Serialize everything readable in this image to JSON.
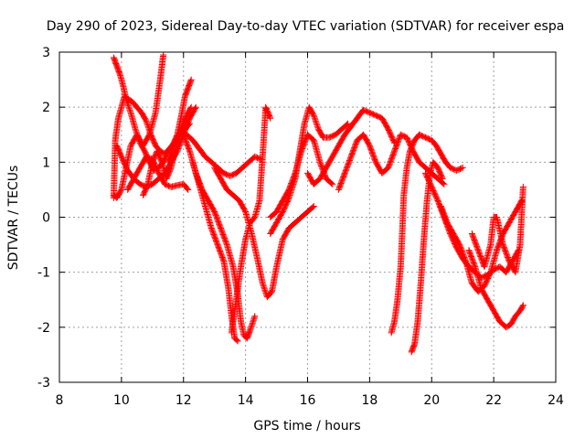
{
  "chart_data": {
    "type": "scatter",
    "title": "Day 290 of 2023, Sidereal Day-to-day VTEC variation (SDTVAR) for receiver espa",
    "xlabel": "GPS time / hours",
    "ylabel": "SDTVAR / TECUs",
    "xlim": [
      8,
      24
    ],
    "ylim": [
      -3,
      3
    ],
    "xticks": [
      8,
      10,
      12,
      14,
      16,
      18,
      20,
      22,
      24
    ],
    "yticks": [
      -3,
      -2,
      -1,
      0,
      1,
      2,
      3
    ],
    "grid": true,
    "marker": "+",
    "color": "#ff0000",
    "series": [
      {
        "name": "track-1",
        "x": [
          9.75,
          9.85,
          9.95,
          10.05,
          10.15,
          10.3,
          10.45,
          10.6,
          10.75,
          10.9,
          11.05,
          11.2,
          11.35,
          11.5,
          11.65,
          11.8,
          11.95,
          12.05,
          12.15,
          12.25
        ],
        "y": [
          2.9,
          2.75,
          2.6,
          2.4,
          2.15,
          1.9,
          1.6,
          1.35,
          1.2,
          1.0,
          0.85,
          0.9,
          1.0,
          1.2,
          1.3,
          1.5,
          1.9,
          2.2,
          2.35,
          2.5
        ]
      },
      {
        "name": "track-2",
        "x": [
          9.75,
          9.8,
          9.9,
          10.0,
          10.1,
          10.2,
          10.35,
          10.5,
          10.65,
          10.8,
          10.95,
          11.1,
          11.25,
          11.4,
          11.55,
          11.7,
          11.85,
          12.0,
          12.1,
          12.25
        ],
        "y": [
          0.35,
          1.4,
          1.8,
          2.0,
          2.2,
          2.15,
          2.1,
          2.0,
          1.9,
          1.75,
          1.5,
          1.3,
          1.2,
          1.15,
          1.25,
          1.35,
          1.5,
          1.7,
          1.85,
          2.0
        ]
      },
      {
        "name": "track-3",
        "x": [
          9.75,
          9.85,
          10.0,
          10.15,
          10.3,
          10.5,
          10.7,
          10.9,
          11.1,
          11.25,
          11.35
        ],
        "y": [
          0.4,
          0.35,
          0.5,
          0.9,
          1.3,
          1.5,
          1.3,
          1.5,
          1.9,
          2.5,
          2.95
        ]
      },
      {
        "name": "track-4",
        "x": [
          9.85,
          10.0,
          10.2,
          10.4,
          10.6,
          10.8,
          11.0,
          11.2,
          11.4,
          11.6,
          11.8,
          12.0,
          12.2,
          12.4
        ],
        "y": [
          1.3,
          1.1,
          0.85,
          0.7,
          0.6,
          0.55,
          0.6,
          0.7,
          0.8,
          1.0,
          1.2,
          1.5,
          1.8,
          2.0
        ]
      },
      {
        "name": "track-5",
        "x": [
          10.2,
          10.4,
          10.6,
          10.8,
          11.0,
          11.2,
          11.4,
          11.6,
          11.8,
          12.0,
          12.15
        ],
        "y": [
          0.5,
          0.7,
          0.9,
          1.1,
          1.05,
          0.8,
          0.6,
          0.55,
          0.58,
          0.6,
          0.5
        ]
      },
      {
        "name": "track-6",
        "x": [
          10.7,
          10.85,
          11.0,
          11.15,
          11.3,
          11.45,
          11.6,
          11.75,
          11.9,
          12.05,
          12.2
        ],
        "y": [
          0.4,
          0.6,
          1.0,
          1.2,
          1.0,
          0.7,
          0.9,
          1.25,
          1.5,
          1.6,
          1.7
        ]
      },
      {
        "name": "track-7",
        "x": [
          11.5,
          11.7,
          11.9,
          12.1,
          12.3,
          12.5,
          12.7,
          12.9,
          13.1,
          13.3,
          13.5,
          13.7,
          13.9,
          14.1,
          14.3,
          14.5
        ],
        "y": [
          1.0,
          1.3,
          1.55,
          1.5,
          1.4,
          1.25,
          1.1,
          1.0,
          0.9,
          0.8,
          0.75,
          0.8,
          0.9,
          1.0,
          1.1,
          1.05
        ]
      },
      {
        "name": "track-8",
        "x": [
          12.0,
          12.2,
          12.4,
          12.6,
          12.8,
          13.0,
          13.2,
          13.4,
          13.6,
          13.75,
          13.85,
          13.95,
          14.05,
          14.15,
          14.3
        ],
        "y": [
          1.5,
          1.2,
          0.8,
          0.5,
          0.3,
          0.1,
          -0.2,
          -0.5,
          -0.9,
          -1.4,
          -1.9,
          -2.15,
          -2.2,
          -2.05,
          -1.8
        ]
      },
      {
        "name": "track-9",
        "x": [
          12.3,
          12.5,
          12.7,
          12.9,
          13.1,
          13.3,
          13.45,
          13.55,
          13.65,
          13.75
        ],
        "y": [
          1.0,
          0.6,
          0.2,
          -0.2,
          -0.5,
          -0.8,
          -1.3,
          -1.8,
          -2.2,
          -2.25
        ]
      },
      {
        "name": "track-10",
        "x": [
          13.55,
          13.7,
          13.85,
          14.0,
          14.15,
          14.3,
          14.45,
          14.55,
          14.65,
          14.8
        ],
        "y": [
          -2.1,
          -1.5,
          -0.9,
          -0.4,
          -0.1,
          0.0,
          0.3,
          1.1,
          2.0,
          1.8
        ]
      },
      {
        "name": "track-11",
        "x": [
          13.0,
          13.2,
          13.4,
          13.6,
          13.8,
          14.0,
          14.2,
          14.4,
          14.55,
          14.7,
          14.85,
          15.0,
          15.2,
          15.4,
          15.6,
          15.8,
          16.0,
          16.2
        ],
        "y": [
          0.9,
          0.7,
          0.5,
          0.4,
          0.3,
          0.1,
          -0.3,
          -0.8,
          -1.2,
          -1.45,
          -1.35,
          -0.9,
          -0.4,
          -0.2,
          -0.1,
          0.0,
          0.1,
          0.2
        ]
      },
      {
        "name": "track-12",
        "x": [
          14.8,
          15.0,
          15.2,
          15.4,
          15.6,
          15.75,
          15.9,
          16.05,
          16.2,
          16.35,
          16.5,
          16.7,
          16.9,
          17.1,
          17.3
        ],
        "y": [
          -0.3,
          -0.1,
          0.1,
          0.35,
          0.7,
          1.2,
          1.7,
          2.0,
          1.85,
          1.6,
          1.45,
          1.45,
          1.5,
          1.6,
          1.7
        ]
      },
      {
        "name": "track-13",
        "x": [
          14.8,
          15.0,
          15.2,
          15.4,
          15.6,
          15.8,
          16.0,
          16.2,
          16.4,
          16.6,
          16.8
        ],
        "y": [
          0.0,
          0.1,
          0.3,
          0.5,
          0.8,
          1.2,
          1.5,
          1.4,
          1.0,
          0.7,
          0.6
        ]
      },
      {
        "name": "track-14",
        "x": [
          16.0,
          16.2,
          16.4,
          16.6,
          16.8,
          17.0,
          17.2,
          17.4,
          17.6,
          17.8,
          18.0,
          18.2,
          18.4,
          18.6,
          18.8
        ],
        "y": [
          0.8,
          0.6,
          0.7,
          0.9,
          1.1,
          1.3,
          1.5,
          1.65,
          1.8,
          1.95,
          1.9,
          1.85,
          1.8,
          1.6,
          1.35
        ]
      },
      {
        "name": "track-15",
        "x": [
          17.0,
          17.2,
          17.4,
          17.6,
          17.8,
          18.0,
          18.2,
          18.4,
          18.6,
          18.8,
          19.0,
          19.2,
          19.4,
          19.6,
          19.8,
          20.0,
          20.2,
          20.4
        ],
        "y": [
          0.5,
          0.8,
          1.1,
          1.4,
          1.5,
          1.3,
          1.0,
          0.8,
          0.9,
          1.2,
          1.5,
          1.45,
          1.2,
          1.0,
          0.9,
          0.8,
          0.7,
          0.6
        ]
      },
      {
        "name": "track-16",
        "x": [
          18.7,
          18.8,
          18.9,
          19.0,
          19.05,
          19.1,
          19.2,
          19.3,
          19.45,
          19.6
        ],
        "y": [
          -2.1,
          -1.9,
          -1.5,
          -0.9,
          -0.3,
          0.4,
          0.9,
          1.2,
          1.4,
          1.5
        ]
      },
      {
        "name": "track-17",
        "x": [
          19.35,
          19.45,
          19.55,
          19.65,
          19.75,
          19.85,
          19.95,
          20.05,
          20.2,
          20.35
        ],
        "y": [
          -2.45,
          -2.3,
          -1.9,
          -1.2,
          -0.4,
          0.3,
          0.8,
          1.0,
          0.9,
          0.7
        ]
      },
      {
        "name": "track-18",
        "x": [
          19.6,
          19.8,
          20.0,
          20.15,
          20.3,
          20.45,
          20.6,
          20.8,
          21.0
        ],
        "y": [
          1.5,
          1.45,
          1.4,
          1.3,
          1.15,
          1.0,
          0.9,
          0.85,
          0.9
        ]
      },
      {
        "name": "track-19",
        "x": [
          19.8,
          20.0,
          20.2,
          20.4,
          20.6,
          20.8,
          21.0,
          21.2,
          21.4,
          21.6,
          21.8,
          22.0,
          22.2,
          22.4,
          22.6,
          22.8
        ],
        "y": [
          0.8,
          0.55,
          0.3,
          0.0,
          -0.3,
          -0.55,
          -0.75,
          -0.9,
          -1.0,
          -1.1,
          -1.05,
          -0.95,
          -0.9,
          -1.0,
          -0.8,
          -0.6
        ]
      },
      {
        "name": "track-20",
        "x": [
          20.3,
          20.5,
          20.7,
          20.9,
          21.1,
          21.3,
          21.5,
          21.7,
          21.9,
          22.1,
          22.3,
          22.5,
          22.7,
          22.9
        ],
        "y": [
          0.2,
          -0.1,
          -0.3,
          -0.5,
          -0.8,
          -1.2,
          -1.35,
          -1.25,
          -1.0,
          -0.6,
          -0.3,
          -0.1,
          0.1,
          0.3
        ]
      },
      {
        "name": "track-21",
        "x": [
          21.2,
          21.4,
          21.6,
          21.8,
          22.0,
          22.2,
          22.4,
          22.55,
          22.7,
          22.85,
          22.95
        ],
        "y": [
          -0.6,
          -0.9,
          -1.3,
          -1.5,
          -1.7,
          -1.9,
          -2.0,
          -1.95,
          -1.8,
          -1.7,
          -1.6
        ]
      },
      {
        "name": "track-22",
        "x": [
          21.3,
          21.5,
          21.7,
          21.9,
          22.0,
          22.1,
          22.3,
          22.5,
          22.7,
          22.85,
          22.95
        ],
        "y": [
          -0.3,
          -0.6,
          -0.9,
          -0.5,
          0.0,
          0.0,
          -0.5,
          -0.8,
          -1.0,
          -0.5,
          0.55
        ]
      }
    ]
  }
}
